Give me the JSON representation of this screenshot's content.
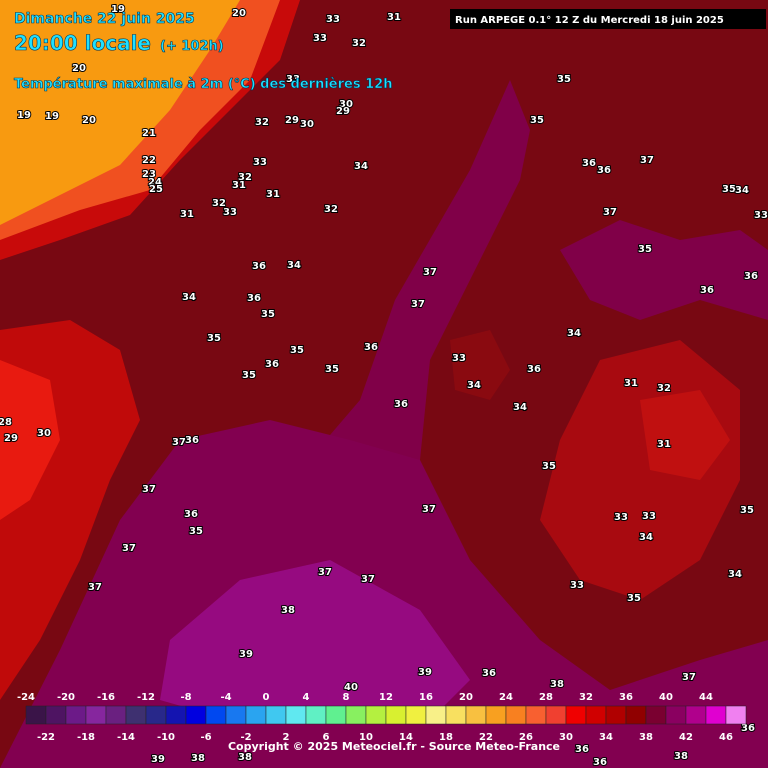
{
  "header": {
    "date": "Dimanche 22 juin 2025",
    "time": "20:00 locale",
    "lead": "(+ 102h)",
    "field": "Température maximale à 2m (°C) des dernières 12h",
    "run": "Run ARPEGE 0.1° 12 Z du Mercredi 18 juin 2025"
  },
  "map_labels": [
    20,
    19,
    33,
    31,
    33,
    32,
    20,
    19,
    19,
    20,
    21,
    33,
    30,
    29,
    32,
    29,
    30,
    22,
    23,
    24,
    25,
    33,
    34,
    32,
    31,
    31,
    31,
    32,
    33,
    32,
    35,
    35,
    36,
    36,
    37,
    35,
    34,
    33,
    37,
    35,
    36,
    36,
    36,
    34,
    34,
    36,
    35,
    37,
    37,
    34,
    35,
    36,
    35,
    33,
    36,
    36,
    35,
    35,
    31,
    32,
    34,
    34,
    36,
    37,
    36,
    31,
    28,
    29,
    30,
    35,
    37,
    37,
    36,
    35,
    33,
    33,
    35,
    34,
    37,
    37,
    37,
    33,
    35,
    34,
    37,
    38,
    39,
    39,
    36,
    40,
    38,
    37,
    36,
    36,
    38,
    39,
    38,
    38,
    36
  ],
  "colorbar": {
    "top_labels": [
      -24,
      -20,
      -16,
      -12,
      -8,
      -4,
      0,
      4,
      8,
      12,
      16,
      20,
      24,
      28,
      32,
      36,
      40,
      44
    ],
    "bottom_labels": [
      -22,
      -18,
      -14,
      -10,
      -6,
      -2,
      2,
      6,
      10,
      14,
      18,
      22,
      26,
      30,
      34,
      38,
      42,
      46
    ],
    "colors": [
      "#3a1448",
      "#4e1462",
      "#6c1a88",
      "#86269e",
      "#6a2080",
      "#3e3070",
      "#28288a",
      "#1414b0",
      "#0000e0",
      "#0048f0",
      "#1878f0",
      "#2aa4f0",
      "#40c8f0",
      "#60e8f0",
      "#60f0c4",
      "#60f090",
      "#88f060",
      "#b4f040",
      "#d8f030",
      "#f0f040",
      "#f8f088",
      "#f8e060",
      "#f8c040",
      "#f8a020",
      "#f88020",
      "#f86030",
      "#f04030",
      "#f00000",
      "#d00000",
      "#b00000",
      "#900000",
      "#7a0030",
      "#8a0060",
      "#b0008c",
      "#e000d0",
      "#f080f0"
    ]
  },
  "footer": {
    "copyright": "Copyright © 2025 Meteociel.fr - Source Meteo-France"
  }
}
